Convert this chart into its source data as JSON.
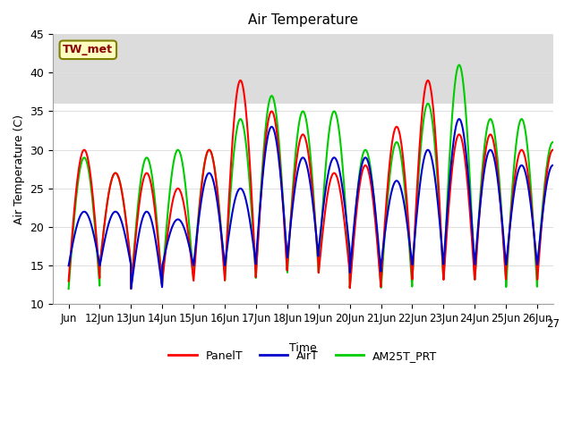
{
  "title": "Air Temperature",
  "xlabel": "Time",
  "ylabel": "Air Temperature (C)",
  "ylim": [
    10,
    45
  ],
  "annotation_text": "TW_met",
  "annotation_color": "#8B0000",
  "annotation_bg": "#FFFFC0",
  "annotation_border": "#808000",
  "grid_color": "#E0E0E0",
  "shading_color": "#DCDCDC",
  "x_tick_labels": [
    "Jun",
    "12Jun",
    "13Jun",
    "14Jun",
    "15Jun",
    "16Jun",
    "17Jun",
    "18Jun",
    "19Jun",
    "20Jun",
    "21Jun",
    "22Jun",
    "23Jun",
    "24Jun",
    "25Jun",
    "26Jun"
  ],
  "x_tick_label_extra": "27",
  "legend_labels": [
    "PanelT",
    "AirT",
    "AM25T_PRT"
  ],
  "legend_colors": [
    "#FF0000",
    "#0000CC",
    "#00CC00"
  ],
  "line_width": 1.5,
  "panel_day_peaks": [
    30,
    27,
    27,
    25,
    30,
    39,
    35,
    32,
    27,
    28,
    33,
    39,
    32,
    32,
    30,
    30
  ],
  "panel_night_mins": [
    13,
    15,
    12,
    13,
    13,
    13,
    14,
    15,
    14,
    12,
    13,
    13,
    13,
    13,
    14,
    13
  ],
  "air_day_peaks": [
    22,
    22,
    22,
    21,
    27,
    25,
    33,
    29,
    29,
    29,
    26,
    30,
    34,
    30,
    28,
    28
  ],
  "air_night_mins": [
    15,
    15,
    12,
    15,
    15,
    15,
    16,
    16,
    17,
    14,
    15,
    15,
    15,
    15,
    15,
    15
  ],
  "am25_day_peaks": [
    29,
    27,
    29,
    30,
    30,
    34,
    37,
    35,
    35,
    30,
    31,
    36,
    41,
    34,
    34,
    31
  ],
  "am25_night_mins": [
    12,
    15,
    12,
    13,
    14,
    13,
    14,
    14,
    14,
    12,
    12,
    13,
    13,
    13,
    12,
    14
  ]
}
